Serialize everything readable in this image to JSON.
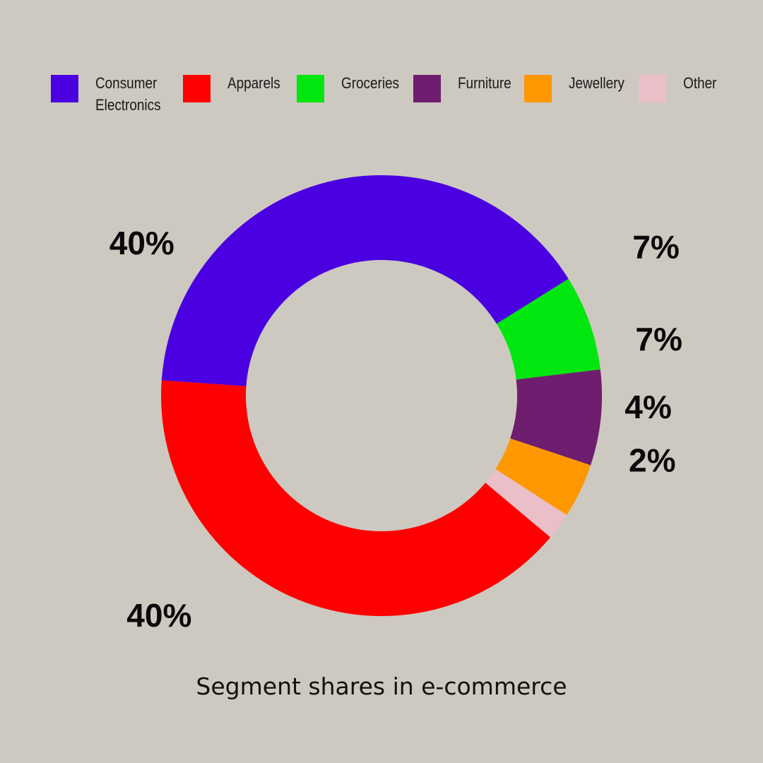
{
  "chart_data": {
    "type": "pie",
    "title": "Segment shares in e-commerce",
    "legend_placement": "top",
    "categories": [
      "Consumer Electronics",
      "Apparels",
      "Groceries",
      "Furniture",
      "Jewellery",
      "Other"
    ],
    "legend_lines": [
      [
        "Consumer",
        "Electronics"
      ],
      [
        "Apparels"
      ],
      [
        "Groceries"
      ],
      [
        "Furniture"
      ],
      [
        "Jewellery"
      ],
      [
        "Other"
      ]
    ],
    "values": [
      40,
      40,
      7,
      7,
      4,
      2
    ],
    "data_labels": [
      "40%",
      "40%",
      "7%",
      "7%",
      "4%",
      "2%"
    ],
    "colors": [
      "#4a00e0",
      "#ff0000",
      "#00e60e",
      "#6f1d6e",
      "#ff9800",
      "#eabfc8"
    ]
  }
}
